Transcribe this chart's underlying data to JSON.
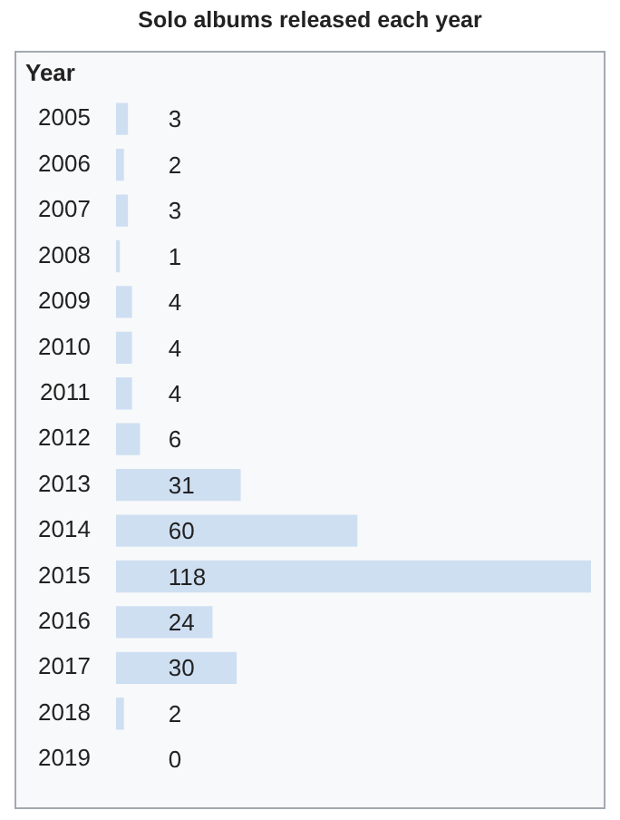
{
  "chart_data": {
    "type": "bar",
    "orientation": "horizontal",
    "title": "Solo albums released each year",
    "ylabel": "Year",
    "categories": [
      "2005",
      "2006",
      "2007",
      "2008",
      "2009",
      "2010",
      "2011",
      "2012",
      "2013",
      "2014",
      "2015",
      "2016",
      "2017",
      "2018",
      "2019"
    ],
    "values": [
      3,
      2,
      3,
      1,
      4,
      4,
      4,
      6,
      31,
      60,
      118,
      24,
      30,
      2,
      0
    ],
    "color": "#cfdff2",
    "data_labels": true,
    "legend": false
  }
}
